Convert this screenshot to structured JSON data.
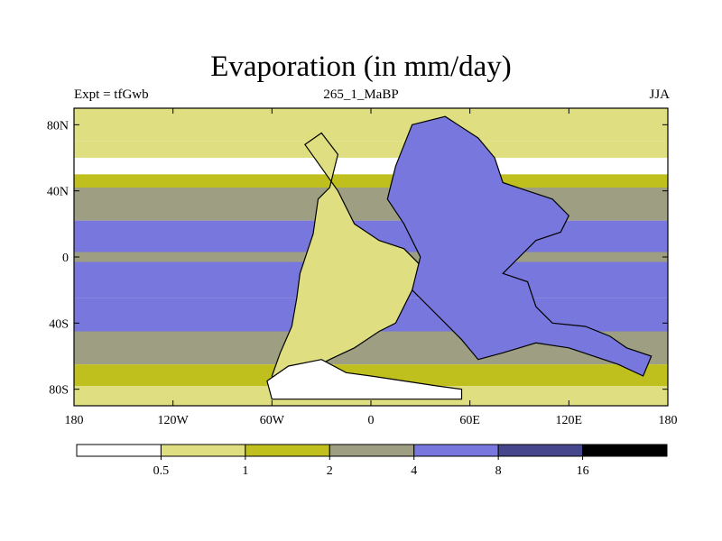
{
  "chart_data": {
    "type": "heatmap",
    "title": "Evaporation (in mm/day)",
    "subtitle_left": "Expt = tfGwb",
    "subtitle_center": "265_1_MaBP",
    "subtitle_right": "JJA",
    "xlim": [
      -180,
      180
    ],
    "ylim": [
      -90,
      90
    ],
    "x_ticks": [
      {
        "value": -180,
        "label": "180"
      },
      {
        "value": -120,
        "label": "120W"
      },
      {
        "value": -60,
        "label": "60W"
      },
      {
        "value": 0,
        "label": "0"
      },
      {
        "value": 60,
        "label": "60E"
      },
      {
        "value": 120,
        "label": "120E"
      },
      {
        "value": 180,
        "label": "180"
      }
    ],
    "y_ticks": [
      {
        "value": 80,
        "label": "80N"
      },
      {
        "value": 40,
        "label": "40N"
      },
      {
        "value": 0,
        "label": "0"
      },
      {
        "value": -40,
        "label": "40S"
      },
      {
        "value": -80,
        "label": "80S"
      }
    ],
    "colorbar": {
      "levels": [
        "0.5",
        "1",
        "2",
        "4",
        "8",
        "16"
      ],
      "colors": [
        "#ffffff",
        "#dfdf82",
        "#bfbf1e",
        "#9e9e82",
        "#7777dd",
        "#46468c",
        "#000000"
      ]
    },
    "field_zones": [
      {
        "lat_min": 70,
        "lat_max": 90,
        "level": 1
      },
      {
        "lat_min": 60,
        "lat_max": 70,
        "level": 1
      },
      {
        "lat_min": 42,
        "lat_max": 50,
        "level": 2
      },
      {
        "lat_min": 22,
        "lat_max": 42,
        "level": 3
      },
      {
        "lat_min": 3,
        "lat_max": 22,
        "level": 4
      },
      {
        "lat_min": -3,
        "lat_max": 3,
        "level": 3
      },
      {
        "lat_min": -25,
        "lat_max": -3,
        "level": 4
      },
      {
        "lat_min": -45,
        "lat_max": -25,
        "level": 4
      },
      {
        "lat_min": -65,
        "lat_max": -45,
        "level": 3
      },
      {
        "lat_min": -78,
        "lat_max": -65,
        "level": 2
      },
      {
        "lat_min": -90,
        "lat_max": -78,
        "level": 1
      }
    ],
    "land_masses": [
      {
        "name": "west-continent",
        "level": 1,
        "points": [
          [
            -40,
            68
          ],
          [
            -30,
            75
          ],
          [
            -20,
            62
          ],
          [
            -25,
            42
          ],
          [
            -32,
            35
          ],
          [
            -35,
            14
          ],
          [
            -38,
            5
          ],
          [
            -43,
            -10
          ],
          [
            -45,
            -25
          ],
          [
            -48,
            -42
          ],
          [
            -55,
            -58
          ],
          [
            -60,
            -72
          ],
          [
            -55,
            -78
          ],
          [
            -40,
            -70
          ],
          [
            -25,
            -62
          ],
          [
            -10,
            -55
          ],
          [
            5,
            -45
          ],
          [
            15,
            -40
          ],
          [
            25,
            -20
          ],
          [
            30,
            -5
          ],
          [
            20,
            5
          ],
          [
            5,
            10
          ],
          [
            -10,
            20
          ],
          [
            -20,
            40
          ]
        ]
      },
      {
        "name": "east-continent",
        "level": 4,
        "points": [
          [
            25,
            80
          ],
          [
            45,
            85
          ],
          [
            65,
            72
          ],
          [
            75,
            60
          ],
          [
            80,
            45
          ],
          [
            95,
            40
          ],
          [
            110,
            35
          ],
          [
            120,
            25
          ],
          [
            115,
            15
          ],
          [
            100,
            10
          ],
          [
            90,
            0
          ],
          [
            80,
            -10
          ],
          [
            95,
            -15
          ],
          [
            100,
            -30
          ],
          [
            110,
            -40
          ],
          [
            130,
            -42
          ],
          [
            145,
            -48
          ],
          [
            155,
            -55
          ],
          [
            170,
            -60
          ],
          [
            165,
            -72
          ],
          [
            150,
            -65
          ],
          [
            120,
            -55
          ],
          [
            100,
            -52
          ],
          [
            80,
            -58
          ],
          [
            65,
            -62
          ],
          [
            55,
            -50
          ],
          [
            45,
            -40
          ],
          [
            35,
            -30
          ],
          [
            25,
            -20
          ],
          [
            30,
            0
          ],
          [
            20,
            20
          ],
          [
            10,
            35
          ],
          [
            15,
            55
          ]
        ]
      },
      {
        "name": "antarctic",
        "level": 0,
        "points": [
          [
            -63,
            -75
          ],
          [
            -50,
            -66
          ],
          [
            -30,
            -62
          ],
          [
            -15,
            -70
          ],
          [
            0,
            -72
          ],
          [
            20,
            -75
          ],
          [
            40,
            -78
          ],
          [
            55,
            -80
          ],
          [
            55,
            -86
          ],
          [
            -60,
            -86
          ]
        ]
      }
    ]
  }
}
